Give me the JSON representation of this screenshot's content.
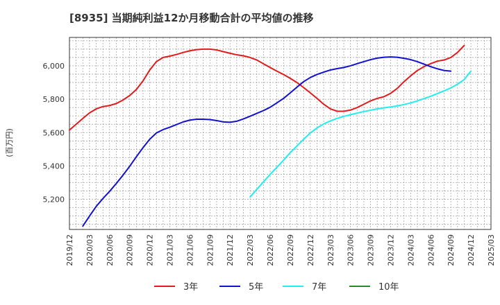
{
  "chart_data": {
    "type": "line",
    "title": "[8935]  当期純利益12か月移動合計の平均値の推移",
    "ylabel": "(百万円)",
    "xlabel": "",
    "ylim": [
      5020,
      6170
    ],
    "yticks": [
      5200,
      5400,
      5600,
      5800,
      6000
    ],
    "ytick_labels": [
      "5,200",
      "5,400",
      "5,600",
      "5,800",
      "6,000"
    ],
    "x_start": "2019-12",
    "x_end": "2025-03",
    "x_months": 63,
    "xtick_labels": [
      "2019/12",
      "2020/03",
      "2020/06",
      "2020/09",
      "2020/12",
      "2021/03",
      "2021/06",
      "2021/09",
      "2021/12",
      "2022/03",
      "2022/06",
      "2022/09",
      "2022/12",
      "2023/03",
      "2023/06",
      "2023/09",
      "2023/12",
      "2024/03",
      "2024/06",
      "2024/09",
      "2024/12",
      "2025/03"
    ],
    "series": [
      {
        "name": "3年",
        "color": "#e31a1c",
        "start_month": 0,
        "values": [
          5615,
          5650,
          5685,
          5718,
          5742,
          5756,
          5762,
          5774,
          5795,
          5822,
          5858,
          5910,
          5975,
          6025,
          6050,
          6058,
          6068,
          6080,
          6090,
          6097,
          6100,
          6100,
          6095,
          6085,
          6075,
          6066,
          6060,
          6050,
          6035,
          6012,
          5990,
          5968,
          5948,
          5925,
          5900,
          5870,
          5838,
          5805,
          5770,
          5742,
          5728,
          5728,
          5735,
          5750,
          5770,
          5790,
          5805,
          5815,
          5835,
          5865,
          5905,
          5940,
          5972,
          5995,
          6013,
          6028,
          6035,
          6050,
          6080,
          6122
        ]
      },
      {
        "name": "5年",
        "color": "#1010d0",
        "start_month": 2,
        "values": [
          5040,
          5100,
          5158,
          5205,
          5248,
          5295,
          5345,
          5398,
          5455,
          5510,
          5560,
          5598,
          5618,
          5632,
          5648,
          5664,
          5675,
          5680,
          5680,
          5678,
          5672,
          5664,
          5662,
          5668,
          5682,
          5698,
          5715,
          5732,
          5752,
          5778,
          5805,
          5838,
          5872,
          5905,
          5930,
          5948,
          5962,
          5975,
          5983,
          5990,
          6000,
          6013,
          6025,
          6037,
          6046,
          6051,
          6053,
          6051,
          6045,
          6037,
          6025,
          6010,
          5995,
          5982,
          5972,
          5968
        ]
      },
      {
        "name": "7年",
        "color": "#22eeee",
        "start_month": 27,
        "values": [
          5215,
          5260,
          5305,
          5350,
          5392,
          5435,
          5480,
          5520,
          5560,
          5598,
          5628,
          5652,
          5670,
          5685,
          5697,
          5707,
          5717,
          5726,
          5734,
          5742,
          5748,
          5754,
          5760,
          5768,
          5778,
          5790,
          5804,
          5818,
          5834,
          5850,
          5868,
          5890,
          5918,
          5968
        ]
      },
      {
        "name": "10年",
        "color": "#2a8a2a",
        "start_month": 0,
        "values": []
      }
    ]
  }
}
